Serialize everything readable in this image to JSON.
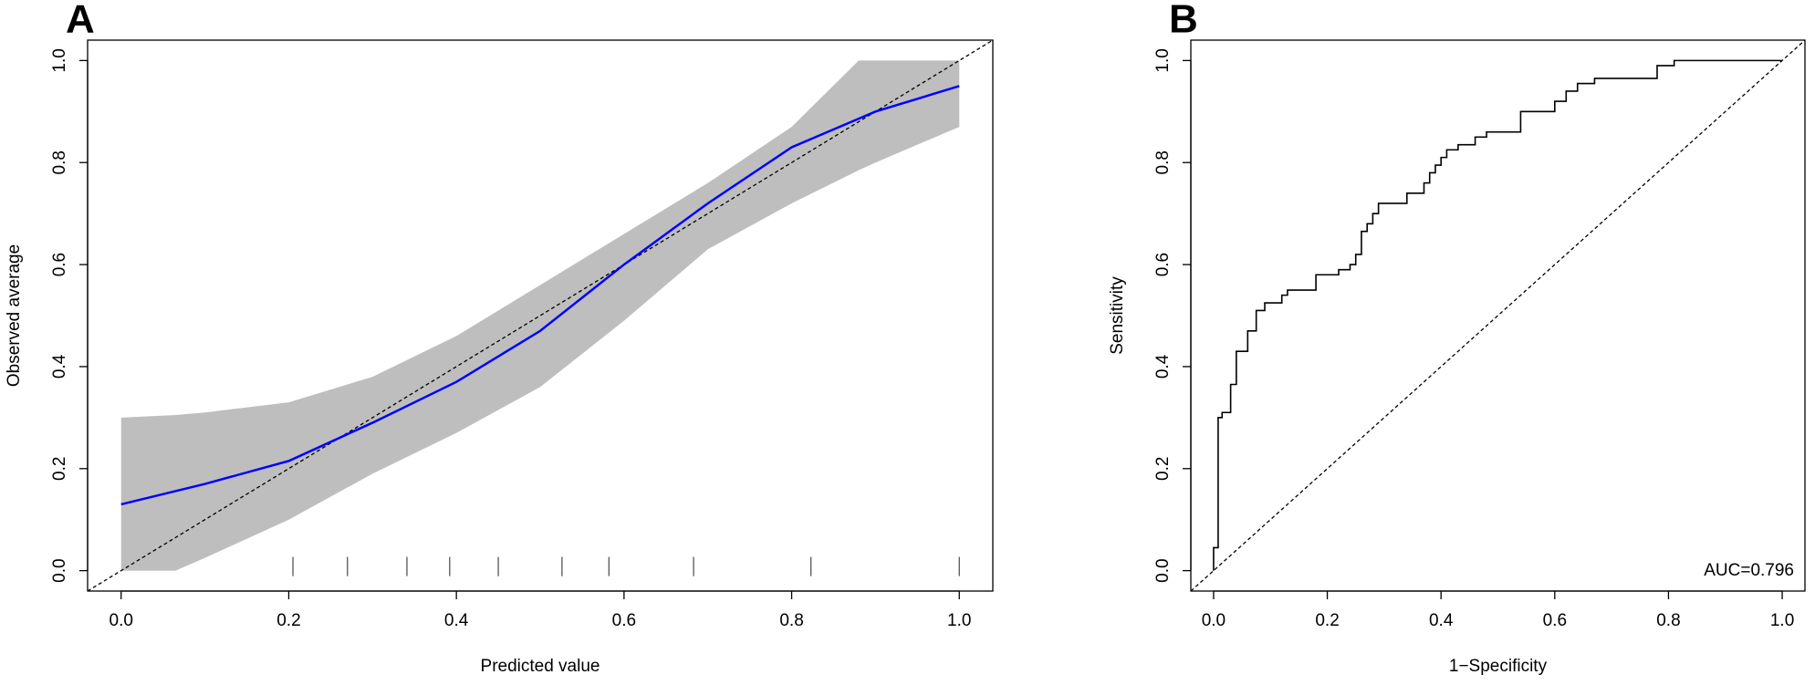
{
  "chart_data": [
    {
      "type": "line",
      "panel": "A",
      "x_label": "Predicted value",
      "y_label": "Observed average",
      "xlim": [
        -0.04,
        1.04
      ],
      "ylim": [
        -0.04,
        1.04
      ],
      "xticks": [
        {
          "value": 0,
          "label": "0.0"
        },
        0.2,
        0.4,
        0.6,
        0.8,
        {
          "value": 1,
          "label": "1.0"
        }
      ],
      "yticks": [
        {
          "value": 0,
          "label": "0.0"
        },
        0.2,
        0.4,
        0.6,
        0.8,
        {
          "value": 1,
          "label": "1.0"
        }
      ],
      "reference_line": true,
      "band": {
        "color": "#bebebe",
        "x": [
          0,
          0.065,
          0.1,
          0.2,
          0.3,
          0.4,
          0.5,
          0.6,
          0.7,
          0.8,
          0.88,
          0.9,
          1.0
        ],
        "upper": [
          0.3,
          0.305,
          0.31,
          0.33,
          0.38,
          0.46,
          0.56,
          0.66,
          0.76,
          0.87,
          1.0,
          1.0,
          1.0
        ],
        "lower": [
          0,
          0,
          0.025,
          0.1,
          0.19,
          0.27,
          0.36,
          0.49,
          0.63,
          0.72,
          0.785,
          0.8,
          0.87
        ]
      },
      "series": [
        {
          "color": "#0000ff",
          "x": [
            0,
            0.1,
            0.2,
            0.3,
            0.4,
            0.5,
            0.6,
            0.7,
            0.8,
            0.9,
            1.0
          ],
          "values": [
            0.13,
            0.17,
            0.215,
            0.29,
            0.37,
            0.47,
            0.6,
            0.72,
            0.83,
            0.9,
            0.95
          ]
        }
      ],
      "rug": [
        0.205,
        0.27,
        0.341,
        0.392,
        0.45,
        0.526,
        0.582,
        0.683,
        0.823,
        1.0
      ]
    },
    {
      "type": "line",
      "panel": "B",
      "x_label": "1−Specificity",
      "y_label": "Sensitivity",
      "xlim": [
        -0.04,
        1.04
      ],
      "ylim": [
        -0.04,
        1.04
      ],
      "xticks": [
        {
          "value": 0,
          "label": "0.0"
        },
        0.2,
        0.4,
        0.6,
        0.8,
        {
          "value": 1,
          "label": "1.0"
        }
      ],
      "yticks": [
        {
          "value": 0,
          "label": "0.0"
        },
        0.2,
        0.4,
        0.6,
        0.8,
        {
          "value": 1,
          "label": "1.0"
        }
      ],
      "reference_line": true,
      "annotation": "AUC=0.796",
      "series": [
        {
          "color": "#000000",
          "x": [
            0,
            0,
            0.008,
            0.008,
            0.015,
            0.015,
            0.03,
            0.03,
            0.04,
            0.04,
            0.06,
            0.06,
            0.075,
            0.075,
            0.09,
            0.09,
            0.12,
            0.12,
            0.13,
            0.13,
            0.18,
            0.18,
            0.22,
            0.22,
            0.24,
            0.24,
            0.25,
            0.25,
            0.26,
            0.26,
            0.27,
            0.27,
            0.28,
            0.28,
            0.29,
            0.29,
            0.34,
            0.34,
            0.37,
            0.37,
            0.38,
            0.38,
            0.39,
            0.39,
            0.4,
            0.4,
            0.41,
            0.41,
            0.43,
            0.43,
            0.46,
            0.46,
            0.48,
            0.48,
            0.54,
            0.54,
            0.6,
            0.6,
            0.62,
            0.62,
            0.64,
            0.64,
            0.67,
            0.67,
            0.78,
            0.78,
            0.81,
            0.81,
            1
          ],
          "values": [
            0,
            0.045,
            0.045,
            0.3,
            0.3,
            0.31,
            0.31,
            0.365,
            0.365,
            0.43,
            0.43,
            0.47,
            0.47,
            0.51,
            0.51,
            0.525,
            0.525,
            0.54,
            0.54,
            0.55,
            0.55,
            0.58,
            0.58,
            0.59,
            0.59,
            0.6,
            0.6,
            0.62,
            0.62,
            0.665,
            0.665,
            0.68,
            0.68,
            0.7,
            0.7,
            0.72,
            0.72,
            0.74,
            0.74,
            0.76,
            0.76,
            0.78,
            0.78,
            0.795,
            0.795,
            0.81,
            0.81,
            0.825,
            0.825,
            0.835,
            0.835,
            0.85,
            0.85,
            0.86,
            0.86,
            0.9,
            0.9,
            0.92,
            0.92,
            0.94,
            0.94,
            0.955,
            0.955,
            0.965,
            0.965,
            0.99,
            0.99,
            1,
            1
          ]
        }
      ]
    }
  ]
}
